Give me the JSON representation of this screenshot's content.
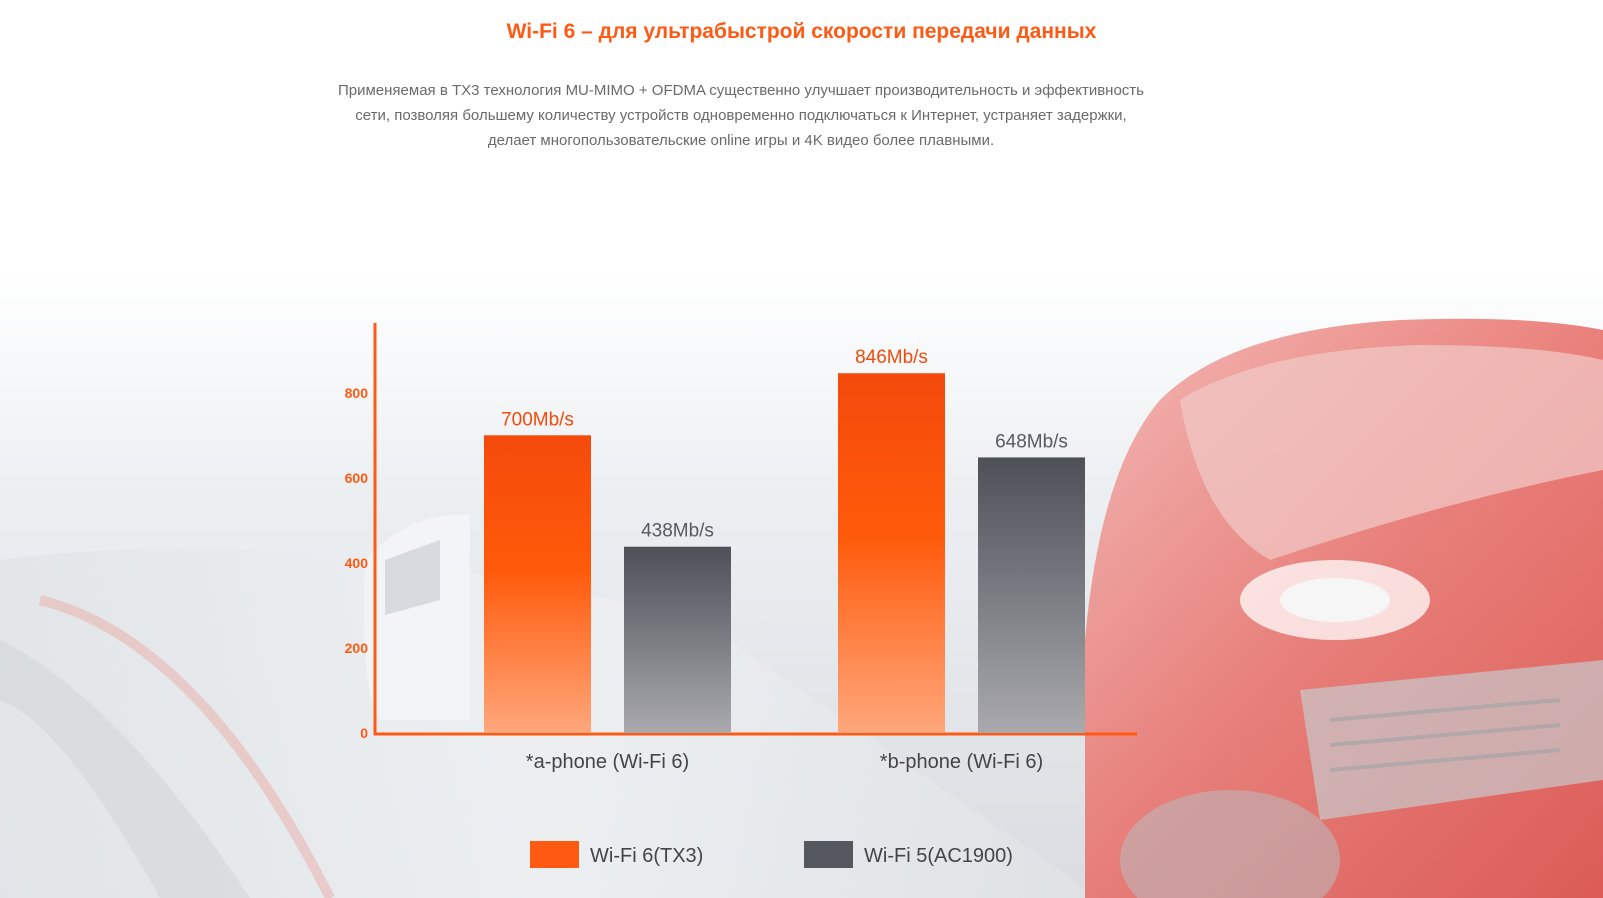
{
  "header": {
    "title": "Wi-Fi 6 – для ультрабыстрой скорости передачи данных",
    "description_lines": [
      "Применяемая в TX3 технология MU-MIMO + OFDMA существенно улучшает производительность и эффективность",
      "сети, позволяя большему количеству устройств одновременно подключаться к Интернет, устраняет задержки,",
      "делает многопользовательские online игры и 4K видео более плавными."
    ]
  },
  "colors": {
    "accent": "#ff5a14",
    "wifi6_top": "#f44a0c",
    "wifi6_bottom": "#ffa77c",
    "wifi5_top": "#4e5058",
    "wifi5_bottom": "#a9a9ae",
    "text": "#444444"
  },
  "chart_data": {
    "type": "bar",
    "categories": [
      "*a-phone (Wi-Fi 6)",
      "*b-phone (Wi-Fi 6)"
    ],
    "series": [
      {
        "name": "Wi-Fi 6(TX3)",
        "values": [
          700,
          846
        ],
        "labels": [
          "700Mb/s",
          "846Mb/s"
        ]
      },
      {
        "name": "Wi-Fi 5(AC1900)",
        "values": [
          438,
          648
        ],
        "labels": [
          "438Mb/s",
          "648Mb/s"
        ]
      }
    ],
    "y_ticks": [
      0,
      200,
      400,
      600,
      800
    ],
    "ylim": [
      0,
      960
    ],
    "grid": false,
    "legend_position": "bottom"
  }
}
